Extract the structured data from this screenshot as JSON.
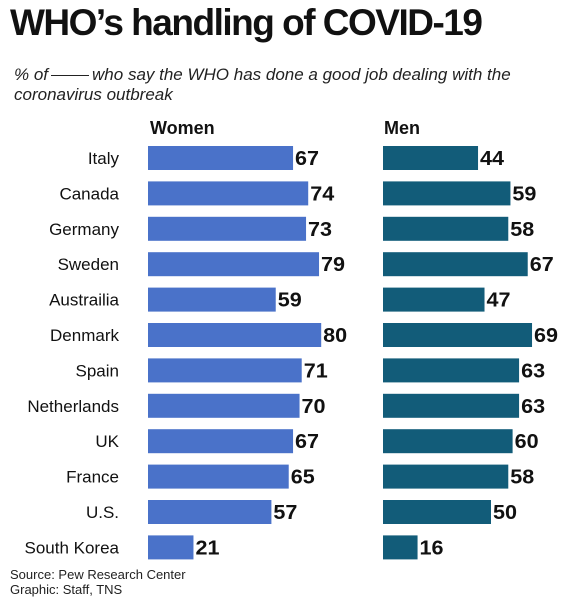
{
  "title": "WHO’s handling of COVID-19",
  "subtitle_before_blank": "% of",
  "subtitle_after_blank": "who say the WHO has done a good job dealing with the coronavirus outbreak",
  "source": "Source: Pew Research Center",
  "credit": "Graphic: Staff, TNS",
  "colors": {
    "women": "#4a72c9",
    "men": "#125c79",
    "text": "#111111"
  },
  "chart_data": {
    "type": "bar",
    "orientation": "horizontal",
    "title": "WHO’s handling of COVID-19",
    "categories": [
      "Italy",
      "Canada",
      "Germany",
      "Sweden",
      "Austrailia",
      "Denmark",
      "Spain",
      "Netherlands",
      "UK",
      "France",
      "U.S.",
      "South Korea"
    ],
    "series": [
      {
        "name": "Women",
        "values": [
          67,
          74,
          73,
          79,
          59,
          80,
          71,
          70,
          67,
          65,
          57,
          21
        ]
      },
      {
        "name": "Men",
        "values": [
          44,
          59,
          58,
          67,
          47,
          69,
          63,
          63,
          60,
          58,
          50,
          16
        ]
      }
    ],
    "xlim": [
      0,
      100
    ],
    "grid": false,
    "legend": "panel headers"
  }
}
